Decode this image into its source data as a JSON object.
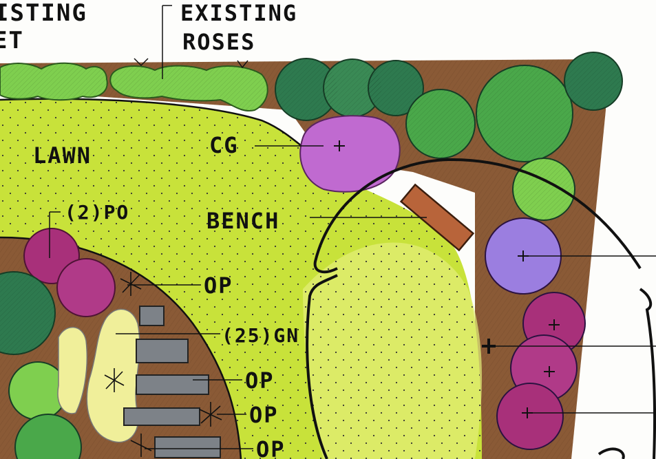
{
  "labels": {
    "existing_left_top": "ISTING",
    "existing_left_bottom": "ET",
    "existing_roses_line1": "EXISTING",
    "existing_roses_line2": "ROSES",
    "lawn": "LAWN",
    "cg": "CG",
    "po": "(2)PO",
    "bench": "BENCH",
    "op1": "OP",
    "gn": "(25)GN",
    "op2": "OP",
    "op3": "OP",
    "op4": "OP"
  },
  "colors": {
    "paper": "#fdfdfb",
    "lawn": "#c8e23a",
    "lawn_light": "#e4f07a",
    "mulch": "#8a5a36",
    "dark_green": "#2e7a4f",
    "mid_green": "#4aa84a",
    "light_green": "#7fcf4f",
    "pink_purple": "#c06ad0",
    "magenta": "#a8307a",
    "lavender": "#9b7ee0",
    "stone": "#7d8288",
    "bench_wood": "#b8643a",
    "ink": "#111111"
  }
}
